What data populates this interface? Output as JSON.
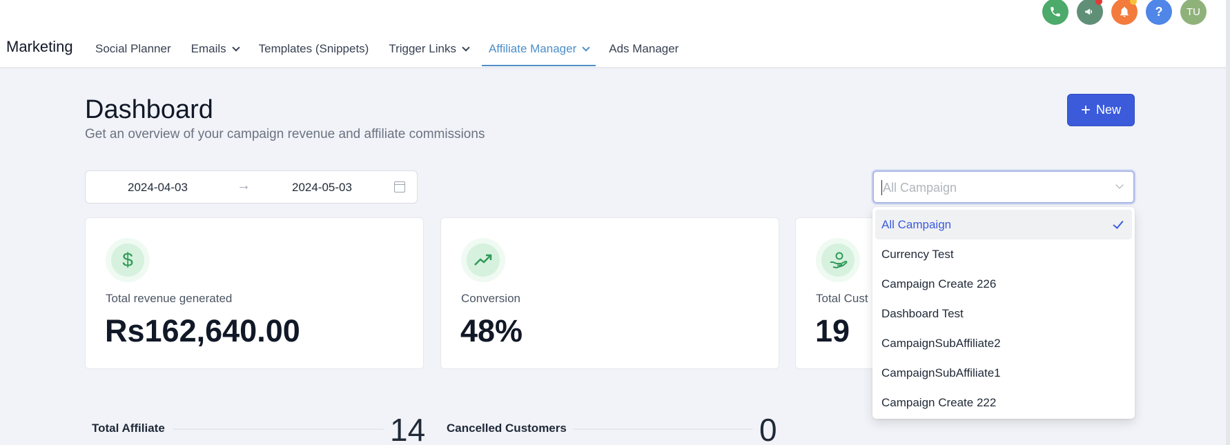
{
  "header": {
    "brand": "Marketing",
    "nav": [
      {
        "label": "Social Planner",
        "has_chevron": false,
        "active": false
      },
      {
        "label": "Emails",
        "has_chevron": true,
        "active": false
      },
      {
        "label": "Templates (Snippets)",
        "has_chevron": false,
        "active": false
      },
      {
        "label": "Trigger Links",
        "has_chevron": true,
        "active": false
      },
      {
        "label": "Affiliate Manager",
        "has_chevron": true,
        "active": true
      },
      {
        "label": "Ads Manager",
        "has_chevron": false,
        "active": false
      }
    ],
    "icons": [
      {
        "name": "phone-icon",
        "color": "#4caa6a",
        "glyph": "✆"
      },
      {
        "name": "megaphone-icon",
        "color": "#5f8f77",
        "glyph": "📢",
        "dot": "#e53935"
      },
      {
        "name": "bell-icon",
        "color": "#f37b3c",
        "glyph": "🔔",
        "dot": "#f6c23e"
      },
      {
        "name": "help-icon",
        "color": "#4f86e8",
        "glyph": "?"
      },
      {
        "name": "user-avatar",
        "color": "#8fb27a",
        "glyph": "TU"
      }
    ]
  },
  "page": {
    "title": "Dashboard",
    "subtitle": "Get an overview of your campaign revenue and affiliate commissions",
    "new_button": "New"
  },
  "filters": {
    "date_start": "2024-04-03",
    "date_end": "2024-05-03",
    "date_arrow": "→",
    "campaign_placeholder": "All Campaign",
    "campaign_options": [
      {
        "label": "All Campaign",
        "selected": true
      },
      {
        "label": "Currency Test",
        "selected": false
      },
      {
        "label": "Campaign Create 226",
        "selected": false
      },
      {
        "label": "Dashboard Test",
        "selected": false
      },
      {
        "label": "CampaignSubAffiliate2",
        "selected": false
      },
      {
        "label": "CampaignSubAffiliate1",
        "selected": false
      },
      {
        "label": "Campaign Create 222",
        "selected": false
      }
    ]
  },
  "cards": [
    {
      "icon": "dollar-icon",
      "glyph": "$",
      "label": "Total revenue generated",
      "value": "Rs162,640.00"
    },
    {
      "icon": "trending-up-icon",
      "glyph": "↗",
      "label": "Conversion",
      "value": "48%"
    },
    {
      "icon": "hand-coins-icon",
      "glyph": "☺",
      "label": "Total Cust",
      "value": "19"
    }
  ],
  "stats": [
    {
      "label": "Total Affiliate",
      "value": "14"
    },
    {
      "label": "Cancelled Customers",
      "value": "0"
    }
  ]
}
